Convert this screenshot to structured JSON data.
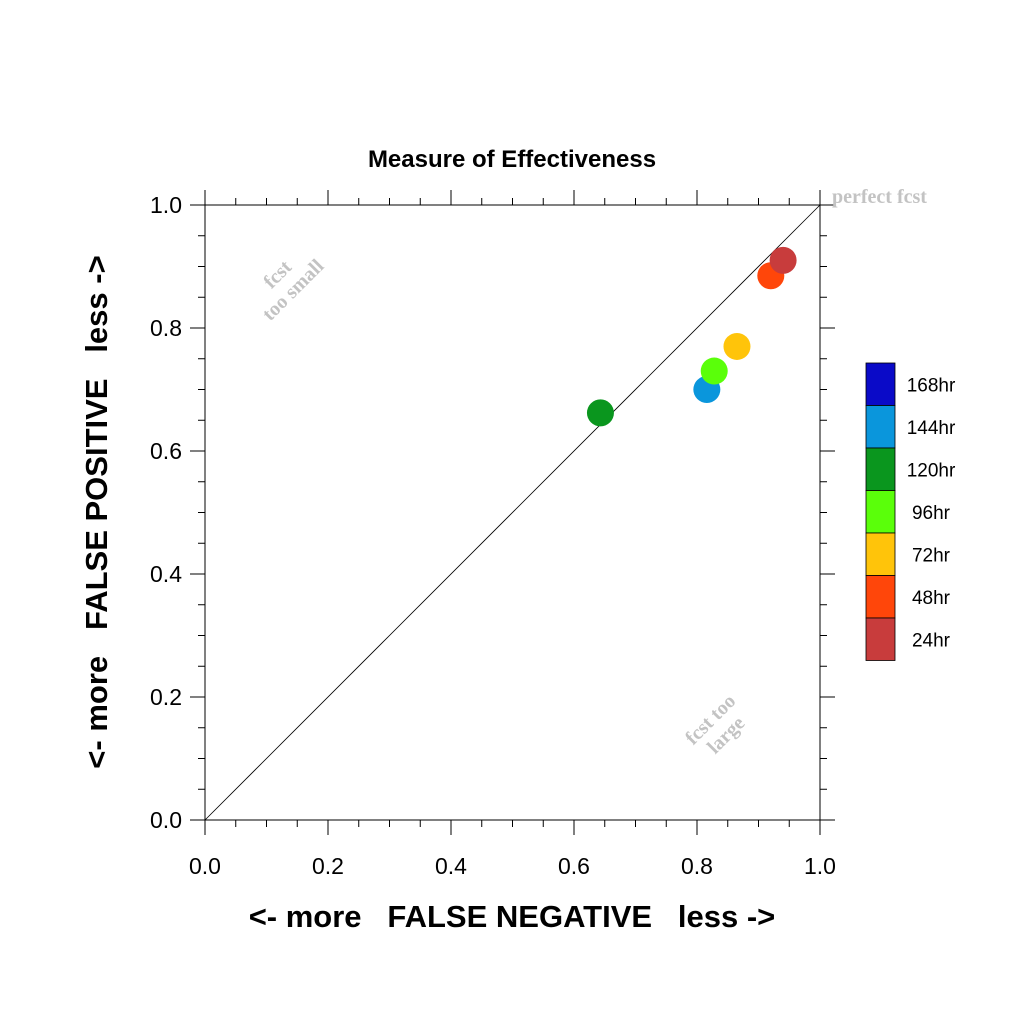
{
  "chart_data": {
    "type": "scatter",
    "title": "Measure of Effectiveness",
    "xlabel": "<- more   FALSE NEGATIVE   less ->",
    "ylabel": "<- more   FALSE POSITIVE   less ->",
    "xlim": [
      0.0,
      1.0
    ],
    "ylim": [
      0.0,
      1.0
    ],
    "x_ticks": [
      "0.0",
      "0.2",
      "0.4",
      "0.6",
      "0.8",
      "1.0"
    ],
    "y_ticks": [
      "0.0",
      "0.2",
      "0.4",
      "0.6",
      "0.8",
      "1.0"
    ],
    "grid": false,
    "diagonal_reference_line": true,
    "annotations": {
      "perfect": "perfect fcst",
      "too_small_line1": "fcst",
      "too_small_line2": "too small",
      "too_large_line1": "fcst too",
      "too_large_line2": "large"
    },
    "legend_position": "right",
    "legend": [
      {
        "label": "168hr",
        "color": "#0a0ac8"
      },
      {
        "label": "144hr",
        "color": "#0a96dc"
      },
      {
        "label": "120hr",
        "color": "#0a961e"
      },
      {
        "label": "96hr",
        "color": "#5aff0a"
      },
      {
        "label": "72hr",
        "color": "#ffc40a"
      },
      {
        "label": "48hr",
        "color": "#ff460a"
      },
      {
        "label": "24hr",
        "color": "#c83c3c"
      }
    ],
    "points": [
      {
        "label": "24hr",
        "x": 0.94,
        "y": 0.91,
        "color": "#c83c3c"
      },
      {
        "label": "48hr",
        "x": 0.92,
        "y": 0.885,
        "color": "#ff460a"
      },
      {
        "label": "72hr",
        "x": 0.865,
        "y": 0.77,
        "color": "#ffc40a"
      },
      {
        "label": "96hr",
        "x": 0.828,
        "y": 0.73,
        "color": "#5aff0a"
      },
      {
        "label": "144hr",
        "x": 0.816,
        "y": 0.7,
        "color": "#0a96dc"
      },
      {
        "label": "120hr",
        "x": 0.643,
        "y": 0.662,
        "color": "#0a961e"
      }
    ]
  }
}
